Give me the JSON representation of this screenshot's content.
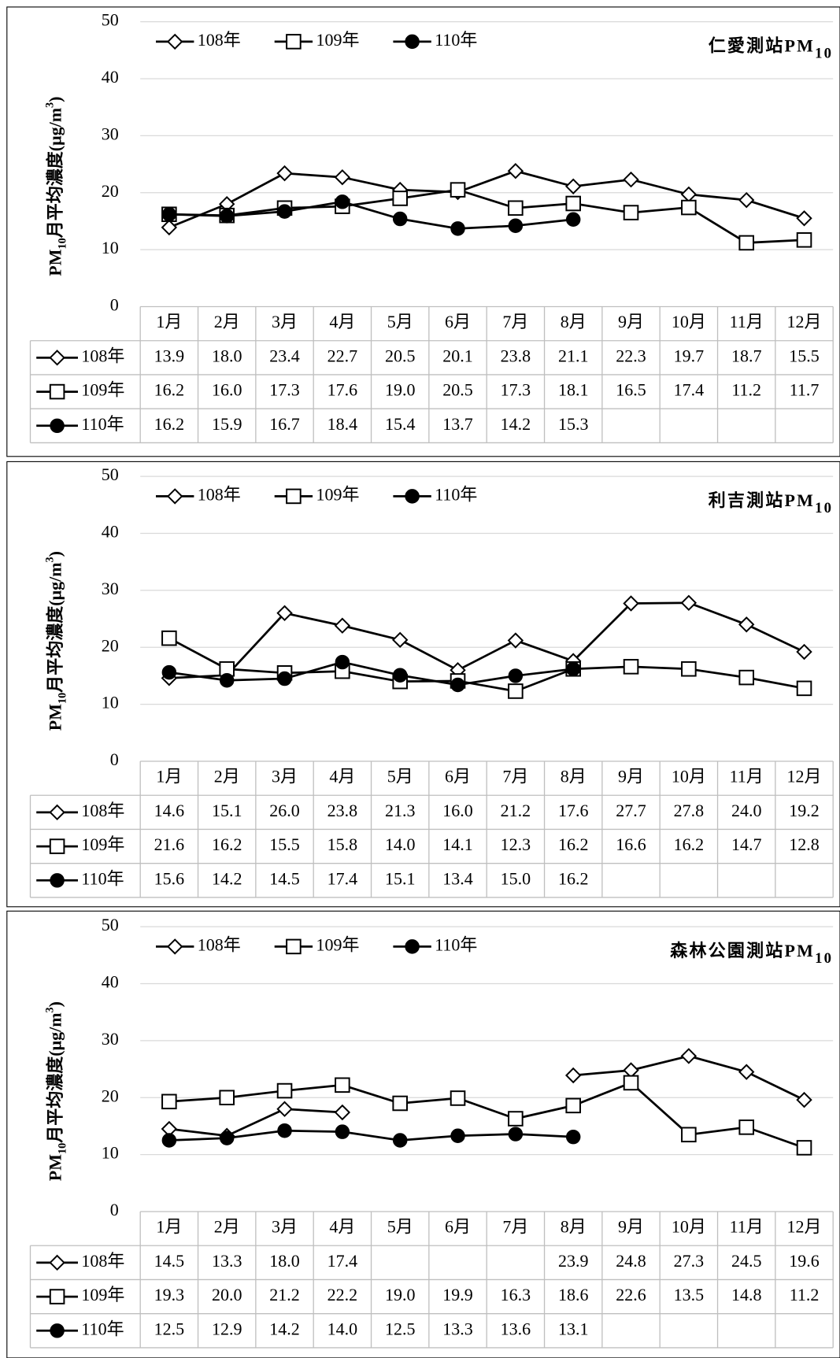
{
  "chart_data": [
    {
      "type": "line",
      "title": {
        "text": "仁愛測站PM",
        "subscript": "10"
      },
      "ylabel": [
        {
          "text": "PM"
        },
        {
          "text": "10",
          "sub": true
        },
        {
          "text": "月平均濃度(μg/m"
        },
        {
          "text": "3",
          "sup": true
        },
        {
          "text": ")"
        }
      ],
      "categories": [
        "1月",
        "2月",
        "3月",
        "4月",
        "5月",
        "6月",
        "7月",
        "8月",
        "9月",
        "10月",
        "11月",
        "12月"
      ],
      "ylim": [
        0,
        50
      ],
      "yticks": [
        0,
        10,
        20,
        30,
        40,
        50
      ],
      "grid": true,
      "series": [
        {
          "name": "108年",
          "color": "#000000",
          "marker": "diamond",
          "values": [
            13.9,
            18.0,
            23.4,
            22.7,
            20.5,
            20.1,
            23.8,
            21.1,
            22.3,
            19.7,
            18.7,
            15.5
          ],
          "value_labels": [
            "13.9",
            "18.0",
            "23.4",
            "22.7",
            "20.5",
            "20.1",
            "23.8",
            "21.1",
            "22.3",
            "19.7",
            "18.7",
            "15.5"
          ]
        },
        {
          "name": "109年",
          "color": "#000000",
          "marker": "square",
          "values": [
            16.2,
            16.0,
            17.3,
            17.6,
            19.0,
            20.5,
            17.3,
            18.1,
            16.5,
            17.4,
            11.2,
            11.7
          ],
          "value_labels": [
            "16.2",
            "16.0",
            "17.3",
            "17.6",
            "19.0",
            "20.5",
            "17.3",
            "18.1",
            "16.5",
            "17.4",
            "11.2",
            "11.7"
          ]
        },
        {
          "name": "110年",
          "color": "#000000",
          "marker": "circle",
          "values": [
            16.2,
            15.9,
            16.7,
            18.4,
            15.4,
            13.7,
            14.2,
            15.3,
            null,
            null,
            null,
            null
          ],
          "value_labels": [
            "16.2",
            "15.9",
            "16.7",
            "18.4",
            "15.4",
            "13.7",
            "14.2",
            "15.3",
            null,
            null,
            null,
            null
          ]
        }
      ]
    },
    {
      "type": "line",
      "title": {
        "text": "利吉測站PM",
        "subscript": "10"
      },
      "ylabel": [
        {
          "text": "PM"
        },
        {
          "text": "10",
          "sub": true
        },
        {
          "text": "月平均濃度(μg/m"
        },
        {
          "text": "3",
          "sup": true
        },
        {
          "text": ")"
        }
      ],
      "categories": [
        "1月",
        "2月",
        "3月",
        "4月",
        "5月",
        "6月",
        "7月",
        "8月",
        "9月",
        "10月",
        "11月",
        "12月"
      ],
      "ylim": [
        0,
        50
      ],
      "yticks": [
        0,
        10,
        20,
        30,
        40,
        50
      ],
      "grid": true,
      "series": [
        {
          "name": "108年",
          "color": "#000000",
          "marker": "diamond",
          "values": [
            14.6,
            15.1,
            26.0,
            23.8,
            21.3,
            16.0,
            21.2,
            17.6,
            27.7,
            27.8,
            24.0,
            19.2
          ],
          "value_labels": [
            "14.6",
            "15.1",
            "26.0",
            "23.8",
            "21.3",
            "16.0",
            "21.2",
            "17.6",
            "27.7",
            "27.8",
            "24.0",
            "19.2"
          ]
        },
        {
          "name": "109年",
          "color": "#000000",
          "marker": "square",
          "values": [
            21.6,
            16.2,
            15.5,
            15.8,
            14.0,
            14.1,
            12.3,
            16.2,
            16.6,
            16.2,
            14.7,
            12.8
          ],
          "value_labels": [
            "21.6",
            "16.2",
            "15.5",
            "15.8",
            "14.0",
            "14.1",
            "12.3",
            "16.2",
            "16.6",
            "16.2",
            "14.7",
            "12.8"
          ]
        },
        {
          "name": "110年",
          "color": "#000000",
          "marker": "circle",
          "values": [
            15.6,
            14.2,
            14.5,
            17.4,
            15.1,
            13.4,
            15.0,
            16.2,
            null,
            null,
            null,
            null
          ],
          "value_labels": [
            "15.6",
            "14.2",
            "14.5",
            "17.4",
            "15.1",
            "13.4",
            "15.0",
            "16.2",
            null,
            null,
            null,
            null
          ]
        }
      ]
    },
    {
      "type": "line",
      "title": {
        "text": "森林公園測站PM",
        "subscript": "10"
      },
      "ylabel": [
        {
          "text": "PM"
        },
        {
          "text": "10",
          "sub": true
        },
        {
          "text": "月平均濃度(μg/m"
        },
        {
          "text": "3",
          "sup": true
        },
        {
          "text": ")"
        }
      ],
      "categories": [
        "1月",
        "2月",
        "3月",
        "4月",
        "5月",
        "6月",
        "7月",
        "8月",
        "9月",
        "10月",
        "11月",
        "12月"
      ],
      "ylim": [
        0,
        50
      ],
      "yticks": [
        0,
        10,
        20,
        30,
        40,
        50
      ],
      "grid": true,
      "series": [
        {
          "name": "108年",
          "color": "#000000",
          "marker": "diamond",
          "values": [
            14.5,
            13.3,
            18.0,
            17.4,
            null,
            null,
            null,
            23.9,
            24.8,
            27.3,
            24.5,
            19.6
          ],
          "value_labels": [
            "14.5",
            "13.3",
            "18.0",
            "17.4",
            null,
            null,
            null,
            "23.9",
            "24.8",
            "27.3",
            "24.5",
            "19.6"
          ]
        },
        {
          "name": "109年",
          "color": "#000000",
          "marker": "square",
          "values": [
            19.3,
            20.0,
            21.2,
            22.2,
            19.0,
            19.9,
            16.3,
            18.6,
            22.6,
            13.5,
            14.8,
            11.2
          ],
          "value_labels": [
            "19.3",
            "20.0",
            "21.2",
            "22.2",
            "19.0",
            "19.9",
            "16.3",
            "18.6",
            "22.6",
            "13.5",
            "14.8",
            "11.2"
          ]
        },
        {
          "name": "110年",
          "color": "#000000",
          "marker": "circle",
          "values": [
            12.5,
            12.9,
            14.2,
            14.0,
            12.5,
            13.3,
            13.6,
            13.1,
            null,
            null,
            null,
            null
          ],
          "value_labels": [
            "12.5",
            "12.9",
            "14.2",
            "14.0",
            "12.5",
            "13.3",
            "13.6",
            "13.1",
            null,
            null,
            null,
            null
          ]
        }
      ]
    }
  ]
}
